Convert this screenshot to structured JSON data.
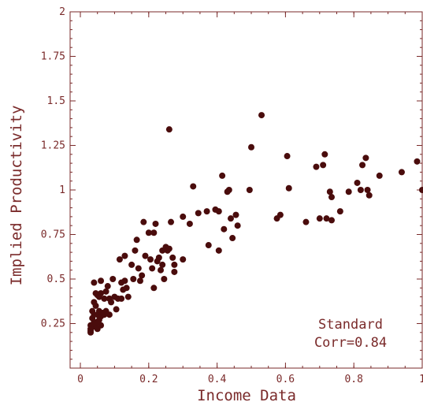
{
  "colors": {
    "axis": "#7a2a2a",
    "point": "#4a0c0c"
  },
  "chart_data": {
    "type": "scatter",
    "xlabel": "Income Data",
    "ylabel": "Implied Productivity",
    "xlim": [
      -0.03,
      1.0
    ],
    "ylim": [
      0.0,
      2.0
    ],
    "x_ticks": [
      0,
      0.2,
      0.4,
      0.6,
      0.8,
      1
    ],
    "x_tick_labels": [
      "0",
      "0.2",
      "0.4",
      "0.6",
      "0.8",
      "1"
    ],
    "y_ticks": [
      0.25,
      0.5,
      0.75,
      1,
      1.25,
      1.5,
      1.75,
      2
    ],
    "y_tick_labels": [
      "0.25",
      "0.5",
      "0.75",
      "1",
      "1.25",
      "1.5",
      "1.75",
      "2"
    ],
    "grid": false,
    "annotation": [
      "Standard",
      "Corr=0.84"
    ],
    "series": [
      {
        "points": [
          [
            0.03,
            0.2
          ],
          [
            0.03,
            0.21
          ],
          [
            0.03,
            0.22
          ],
          [
            0.035,
            0.23
          ],
          [
            0.03,
            0.24
          ],
          [
            0.04,
            0.26
          ],
          [
            0.035,
            0.28
          ],
          [
            0.045,
            0.25
          ],
          [
            0.05,
            0.22
          ],
          [
            0.04,
            0.3
          ],
          [
            0.035,
            0.32
          ],
          [
            0.05,
            0.3
          ],
          [
            0.055,
            0.27
          ],
          [
            0.06,
            0.24
          ],
          [
            0.045,
            0.35
          ],
          [
            0.04,
            0.37
          ],
          [
            0.055,
            0.32
          ],
          [
            0.06,
            0.29
          ],
          [
            0.065,
            0.31
          ],
          [
            0.07,
            0.3
          ],
          [
            0.075,
            0.32
          ],
          [
            0.085,
            0.3
          ],
          [
            0.05,
            0.41
          ],
          [
            0.045,
            0.42
          ],
          [
            0.055,
            0.4
          ],
          [
            0.06,
            0.42
          ],
          [
            0.04,
            0.48
          ],
          [
            0.06,
            0.49
          ],
          [
            0.075,
            0.43
          ],
          [
            0.08,
            0.46
          ],
          [
            0.07,
            0.39
          ],
          [
            0.085,
            0.39
          ],
          [
            0.09,
            0.37
          ],
          [
            0.1,
            0.4
          ],
          [
            0.105,
            0.33
          ],
          [
            0.095,
            0.5
          ],
          [
            0.11,
            0.39
          ],
          [
            0.12,
            0.39
          ],
          [
            0.12,
            0.48
          ],
          [
            0.125,
            0.44
          ],
          [
            0.115,
            0.61
          ],
          [
            0.13,
            0.63
          ],
          [
            0.13,
            0.49
          ],
          [
            0.135,
            0.45
          ],
          [
            0.14,
            0.4
          ],
          [
            0.15,
            0.58
          ],
          [
            0.155,
            0.5
          ],
          [
            0.16,
            0.66
          ],
          [
            0.165,
            0.72
          ],
          [
            0.17,
            0.56
          ],
          [
            0.175,
            0.49
          ],
          [
            0.18,
            0.52
          ],
          [
            0.185,
            0.82
          ],
          [
            0.19,
            0.63
          ],
          [
            0.2,
            0.76
          ],
          [
            0.205,
            0.61
          ],
          [
            0.21,
            0.56
          ],
          [
            0.215,
            0.76
          ],
          [
            0.22,
            0.81
          ],
          [
            0.215,
            0.45
          ],
          [
            0.225,
            0.6
          ],
          [
            0.23,
            0.62
          ],
          [
            0.235,
            0.55
          ],
          [
            0.24,
            0.58
          ],
          [
            0.245,
            0.5
          ],
          [
            0.25,
            0.68
          ],
          [
            0.255,
            0.66
          ],
          [
            0.26,
            0.67
          ],
          [
            0.27,
            0.62
          ],
          [
            0.275,
            0.58
          ],
          [
            0.265,
            0.82
          ],
          [
            0.275,
            0.54
          ],
          [
            0.24,
            0.66
          ],
          [
            0.26,
            1.34
          ],
          [
            0.3,
            0.85
          ],
          [
            0.3,
            0.61
          ],
          [
            0.32,
            0.81
          ],
          [
            0.33,
            1.02
          ],
          [
            0.345,
            0.87
          ],
          [
            0.37,
            0.88
          ],
          [
            0.375,
            0.69
          ],
          [
            0.395,
            0.89
          ],
          [
            0.405,
            0.88
          ],
          [
            0.405,
            0.66
          ],
          [
            0.415,
            1.08
          ],
          [
            0.42,
            0.78
          ],
          [
            0.43,
            0.99
          ],
          [
            0.435,
            1.0
          ],
          [
            0.44,
            0.84
          ],
          [
            0.445,
            0.73
          ],
          [
            0.455,
            0.86
          ],
          [
            0.46,
            0.8
          ],
          [
            0.495,
            1.0
          ],
          [
            0.5,
            1.24
          ],
          [
            0.53,
            1.42
          ],
          [
            0.575,
            0.84
          ],
          [
            0.585,
            0.86
          ],
          [
            0.605,
            1.19
          ],
          [
            0.61,
            1.01
          ],
          [
            0.66,
            0.82
          ],
          [
            0.69,
            1.13
          ],
          [
            0.7,
            0.84
          ],
          [
            0.71,
            1.14
          ],
          [
            0.715,
            1.2
          ],
          [
            0.72,
            0.84
          ],
          [
            0.73,
            0.99
          ],
          [
            0.735,
            0.96
          ],
          [
            0.735,
            0.83
          ],
          [
            0.76,
            0.88
          ],
          [
            0.785,
            0.99
          ],
          [
            0.81,
            1.04
          ],
          [
            0.82,
            1.0
          ],
          [
            0.825,
            1.14
          ],
          [
            0.835,
            1.18
          ],
          [
            0.84,
            1.0
          ],
          [
            0.845,
            0.97
          ],
          [
            0.875,
            1.08
          ],
          [
            0.94,
            1.1
          ],
          [
            0.985,
            1.16
          ],
          [
            1.0,
            1.0
          ]
        ]
      }
    ]
  }
}
